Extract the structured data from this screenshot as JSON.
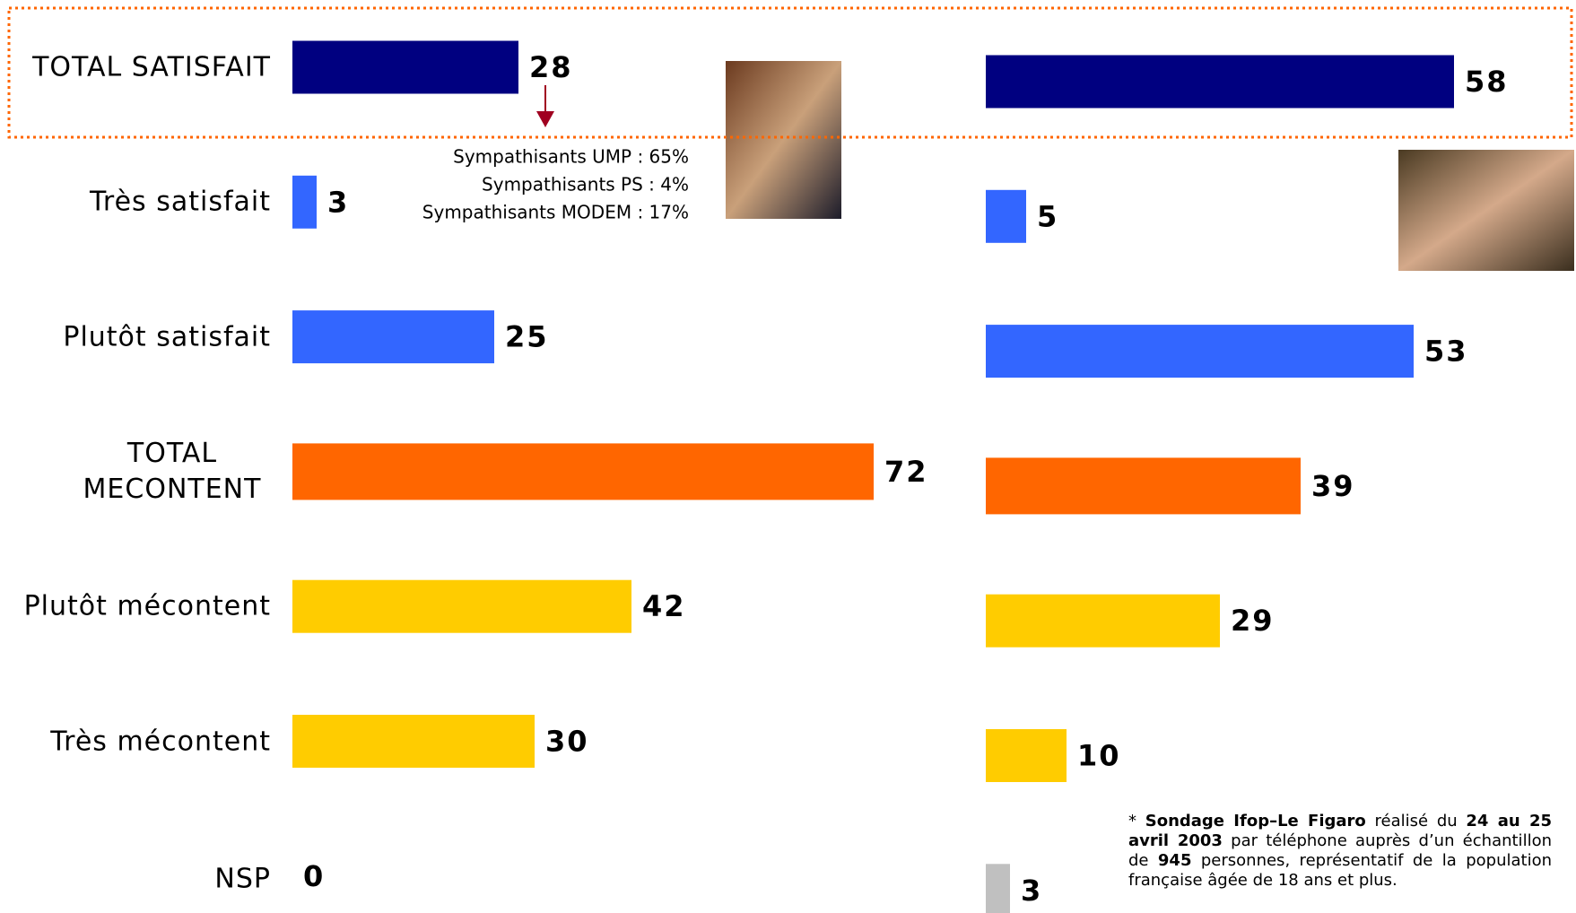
{
  "chart_data": [
    {
      "type": "bar",
      "categories": [
        "TOTAL SATISFAIT",
        "Très satisfait",
        "Plutôt satisfait",
        "TOTAL MECONTENT",
        "Plutôt mécontent",
        "Très mécontent",
        "NSP"
      ],
      "values": [
        28,
        3,
        25,
        72,
        42,
        30,
        0
      ],
      "colors": [
        "#000080",
        "#3366ff",
        "#3366ff",
        "#ff6600",
        "#ffcc00",
        "#ffcc00",
        "#c0c0c0"
      ],
      "annotations": [
        "Sympathisants UMP : 65%",
        "Sympathisants PS : 4%",
        "Sympathisants MODEM : 17%"
      ]
    },
    {
      "type": "bar",
      "values": [
        58,
        5,
        53,
        39,
        29,
        10,
        3
      ],
      "colors": [
        "#000080",
        "#3366ff",
        "#3366ff",
        "#ff6600",
        "#ffcc00",
        "#ffcc00",
        "#c0c0c0"
      ],
      "footnote": [
        {
          "text": "* ",
          "bold": false
        },
        {
          "text": "Sondage Ifop–Le Figaro",
          "bold": true
        },
        {
          "text": " réalisé du ",
          "bold": false
        },
        {
          "text": "24 au 25 avril 2003",
          "bold": true
        },
        {
          "text": " par téléphone auprès d’un échantillon de ",
          "bold": false
        },
        {
          "text": "945",
          "bold": true
        },
        {
          "text": " personnes, représentatif de la population française âgée de 18 ans et plus.",
          "bold": false
        }
      ]
    }
  ]
}
